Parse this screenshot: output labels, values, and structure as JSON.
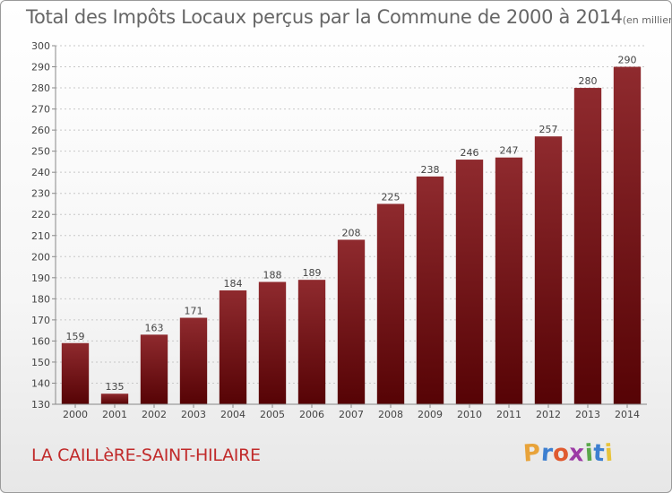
{
  "header": {
    "title": "Total des Impôts Locaux perçus par la Commune de 2000 à 2014",
    "unit": "(en milliers d'€)"
  },
  "footer": {
    "commune": "LA CAILLèRE-SAINT-HILAIRE",
    "brand": {
      "letters": [
        "P",
        "r",
        "o",
        "x",
        "i",
        "t",
        "i"
      ],
      "colors": [
        "#e8a33a",
        "#3d7fd0",
        "#e05a2f",
        "#9c3aa5",
        "#5aa84a",
        "#3d7fd0",
        "#e8c33a"
      ]
    }
  },
  "colors": {
    "bar_light": "#8f2a2e",
    "bar_dark": "#560305",
    "grid": "#c8c8c8",
    "axis": "#888888",
    "text": "#444444"
  },
  "chart_data": {
    "type": "bar",
    "title": "Total des Impôts Locaux perçus par la Commune de 2000 à 2014",
    "xlabel": "",
    "ylabel": "en milliers d'€",
    "categories": [
      "2000",
      "2001",
      "2002",
      "2003",
      "2004",
      "2005",
      "2006",
      "2007",
      "2008",
      "2009",
      "2010",
      "2011",
      "2012",
      "2013",
      "2014"
    ],
    "values": [
      159,
      135,
      163,
      171,
      184,
      188,
      189,
      208,
      225,
      238,
      246,
      247,
      257,
      280,
      290
    ],
    "ylim": [
      130,
      300
    ],
    "ytick_step": 10,
    "grid": true,
    "legend": "none"
  }
}
